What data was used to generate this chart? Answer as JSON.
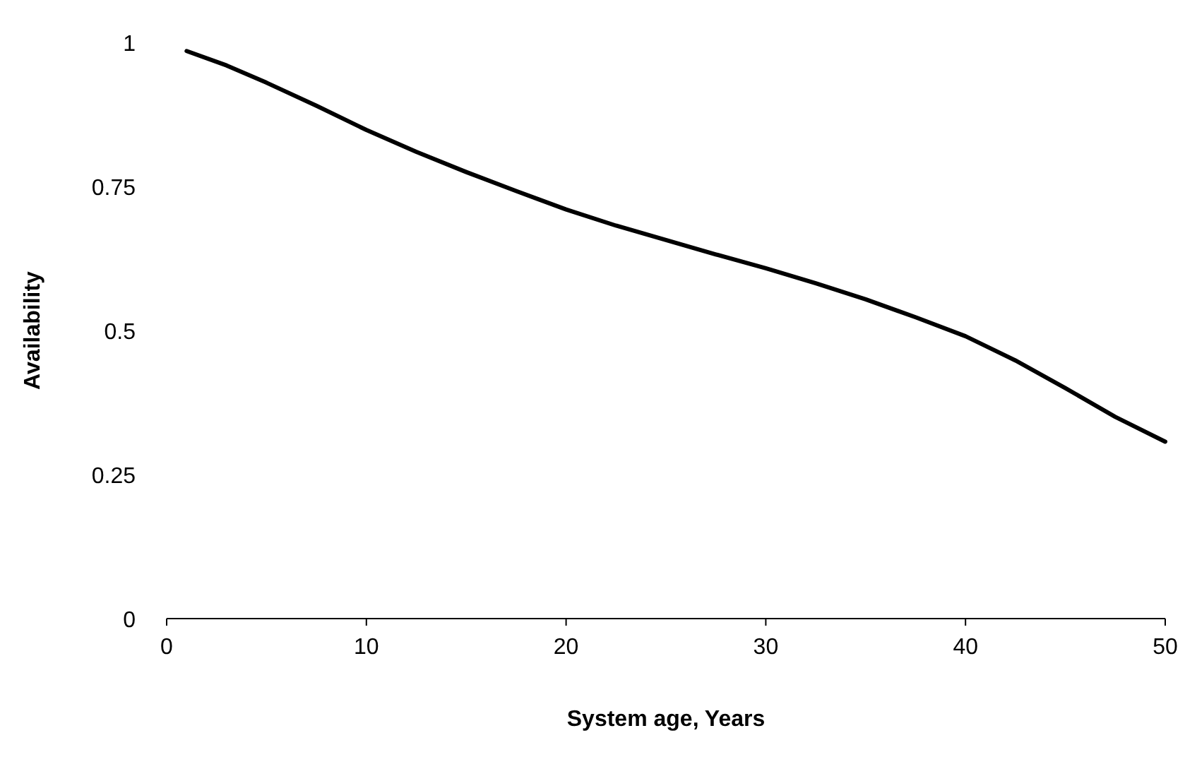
{
  "chart_data": {
    "type": "line",
    "xlabel": "System age, Years",
    "ylabel": "Availability",
    "x": [
      1,
      3,
      5,
      7.5,
      10,
      12.5,
      15,
      17.5,
      20,
      22.5,
      25,
      27.5,
      30,
      32.5,
      35,
      37.5,
      40,
      42.5,
      45,
      47.5,
      50
    ],
    "series": [
      {
        "color": "#000000",
        "values": [
          0.985,
          0.96,
          0.93,
          0.89,
          0.848,
          0.81,
          0.775,
          0.742,
          0.71,
          0.682,
          0.657,
          0.632,
          0.608,
          0.582,
          0.554,
          0.523,
          0.49,
          0.448,
          0.4,
          0.35,
          0.307
        ]
      }
    ],
    "xlim": [
      0,
      50
    ],
    "xticks": [
      0,
      10,
      20,
      30,
      40,
      50
    ],
    "ylim": [
      0,
      1
    ],
    "yticks": [
      0,
      {
        "value": 0.25,
        "label": "0.25"
      },
      {
        "value": 0.5,
        "label": "0.5"
      },
      {
        "value": 0.75,
        "label": "0.75"
      },
      1
    ],
    "line_style": "solid"
  }
}
